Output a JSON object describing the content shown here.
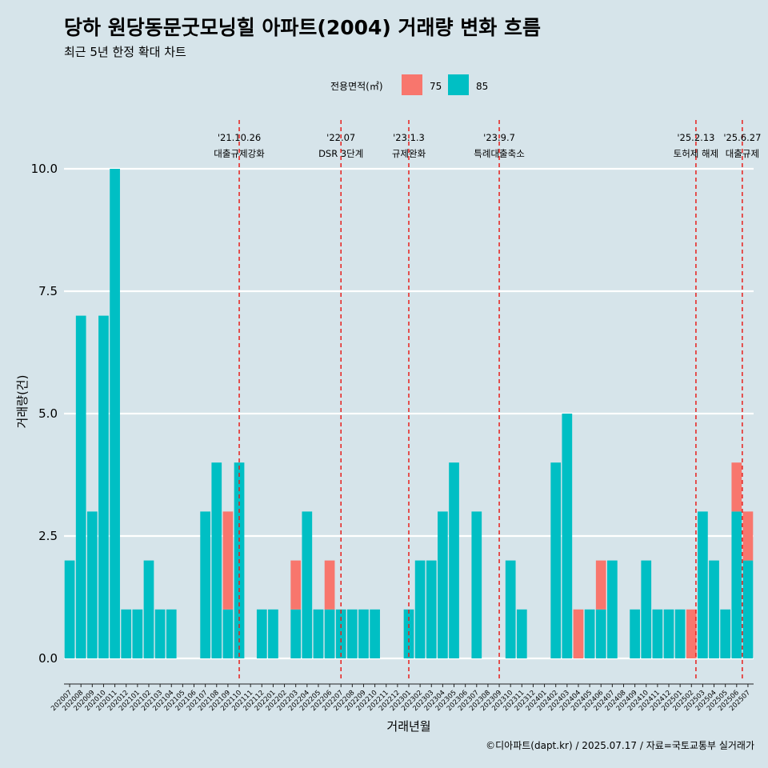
{
  "title": "당하 원당동문굿모닝힐 아파트(2004) 거래량 변화 흐름",
  "subtitle": "최근 5년 한정 확대 차트",
  "caption": "©디아파트(dapt.kr) / 2025.07.17 / 자료=국토교통부 실거래가",
  "legend": {
    "title": "전용면적(㎡)",
    "items": [
      {
        "label": "75",
        "color": "#f8766d"
      },
      {
        "label": "85",
        "color": "#00bfc4"
      }
    ]
  },
  "chart_data": {
    "type": "bar",
    "stacked": true,
    "xlabel": "거래년월",
    "ylabel": "거래량(건)",
    "ylim": [
      0,
      10
    ],
    "yticks": [
      "0.0",
      "2.5",
      "5.0",
      "7.5",
      "10.0"
    ],
    "grid": true,
    "legend_position": "top",
    "categories": [
      "202007",
      "202008",
      "202009",
      "202010",
      "202011",
      "202012",
      "202101",
      "202102",
      "202103",
      "202104",
      "202105",
      "202106",
      "202107",
      "202108",
      "202109",
      "202110",
      "202111",
      "202112",
      "202201",
      "202202",
      "202203",
      "202204",
      "202205",
      "202206",
      "202207",
      "202208",
      "202209",
      "202210",
      "202211",
      "202212",
      "202301",
      "202302",
      "202303",
      "202304",
      "202305",
      "202306",
      "202307",
      "202308",
      "202309",
      "202310",
      "202311",
      "202312",
      "202401",
      "202402",
      "202403",
      "202404",
      "202405",
      "202406",
      "202407",
      "202408",
      "202409",
      "202410",
      "202411",
      "202412",
      "202501",
      "202502",
      "202503",
      "202504",
      "202505",
      "202506",
      "202507"
    ],
    "series": [
      {
        "name": "75",
        "color": "#f8766d",
        "values": [
          0,
          0,
          0,
          0,
          0,
          0,
          0,
          0,
          0,
          0,
          0,
          0,
          0,
          0,
          2,
          0,
          0,
          0,
          0,
          0,
          1,
          0,
          0,
          1,
          0,
          0,
          0,
          0,
          0,
          0,
          0,
          0,
          0,
          0,
          0,
          0,
          0,
          0,
          0,
          0,
          0,
          0,
          0,
          0,
          0,
          1,
          0,
          1,
          0,
          0,
          0,
          0,
          0,
          0,
          0,
          1,
          0,
          0,
          0,
          1,
          1
        ]
      },
      {
        "name": "85",
        "color": "#00bfc4",
        "values": [
          2,
          7,
          3,
          7,
          10,
          1,
          1,
          2,
          1,
          1,
          0,
          0,
          3,
          4,
          1,
          4,
          0,
          1,
          1,
          0,
          1,
          3,
          1,
          1,
          1,
          1,
          1,
          1,
          0,
          0,
          1,
          2,
          2,
          3,
          4,
          0,
          3,
          0,
          0,
          2,
          1,
          0,
          0,
          4,
          5,
          0,
          1,
          1,
          2,
          0,
          1,
          2,
          1,
          1,
          1,
          0,
          3,
          2,
          1,
          3,
          2
        ]
      }
    ],
    "events": [
      {
        "date": "'21.10.26",
        "label": "대출규제강화",
        "at": 15.0
      },
      {
        "date": "'22.07",
        "label": "DSR 3단계",
        "at": 24.0
      },
      {
        "date": "'23.1.3",
        "label": "규제완화",
        "at": 30.0
      },
      {
        "date": "'23.9.7",
        "label": "특례대출축소",
        "at": 38.0
      },
      {
        "date": "'25.2.13",
        "label": "토허제 해제",
        "at": 55.4
      },
      {
        "date": "'25.6.27",
        "label": "대출규제",
        "at": 59.5
      }
    ]
  }
}
